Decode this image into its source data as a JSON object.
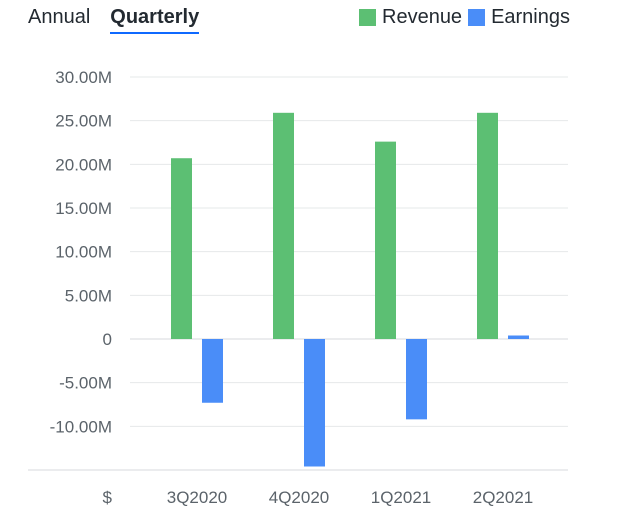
{
  "tabs": [
    {
      "label": "Annual",
      "active": false
    },
    {
      "label": "Quarterly",
      "active": true
    }
  ],
  "legend": [
    {
      "label": "Revenue",
      "color": "#5cbf73"
    },
    {
      "label": "Earnings",
      "color": "#4a8df8"
    }
  ],
  "chart_data": {
    "type": "bar",
    "categories": [
      "3Q2020",
      "4Q2020",
      "1Q2021",
      "2Q2021"
    ],
    "series": [
      {
        "name": "Revenue",
        "color": "#5cbf73",
        "values": [
          20.7,
          25.9,
          22.6,
          25.9
        ]
      },
      {
        "name": "Earnings",
        "color": "#4a8df8",
        "values": [
          -7.3,
          -14.6,
          -9.2,
          0.4
        ]
      }
    ],
    "y_ticks": [
      30,
      25,
      20,
      15,
      10,
      5,
      0,
      -5,
      -10
    ],
    "y_tick_labels": [
      "30.00M",
      "25.00M",
      "20.00M",
      "15.00M",
      "10.00M",
      "5.00M",
      "0",
      "-5.00M",
      "-10.00M"
    ],
    "ylim": [
      -15,
      30
    ],
    "y_unit_label": "$",
    "grid": true,
    "legend_position": "top-right"
  }
}
